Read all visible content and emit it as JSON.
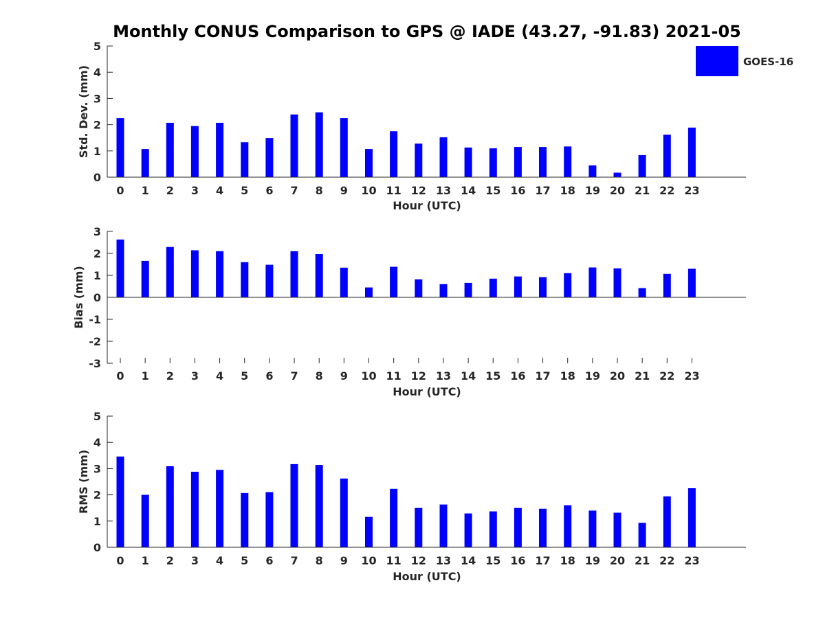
{
  "title": "Monthly CONUS Comparison to GPS @ IADE (43.27, -91.83) 2021-05",
  "legend": {
    "label": "GOES-16",
    "color": "#0000ff",
    "position": "top-right"
  },
  "chart_data": [
    {
      "type": "bar",
      "id": "std",
      "title": "",
      "xlabel": "Hour (UTC)",
      "ylabel": "Std. Dev. (mm)",
      "ylim": [
        0,
        5
      ],
      "yticks": [
        "0",
        "1",
        "2",
        "3",
        "4",
        "5"
      ],
      "categories": [
        "0",
        "1",
        "2",
        "3",
        "4",
        "5",
        "6",
        "7",
        "8",
        "9",
        "10",
        "11",
        "12",
        "13",
        "14",
        "15",
        "16",
        "17",
        "18",
        "19",
        "20",
        "21",
        "22",
        "23"
      ],
      "series": [
        {
          "name": "GOES-16",
          "values": [
            2.25,
            1.07,
            2.07,
            1.95,
            2.07,
            1.33,
            1.49,
            2.39,
            2.47,
            2.25,
            1.07,
            1.75,
            1.28,
            1.52,
            1.13,
            1.1,
            1.15,
            1.15,
            1.17,
            0.45,
            0.17,
            0.84,
            1.62,
            1.89
          ]
        }
      ],
      "grid": false
    },
    {
      "type": "bar",
      "id": "bias",
      "title": "",
      "xlabel": "Hour (UTC)",
      "ylabel": "Bias (mm)",
      "ylim": [
        -3,
        3
      ],
      "yticks": [
        "-3",
        "-2",
        "-1",
        "0",
        "1",
        "2",
        "3"
      ],
      "categories": [
        "0",
        "1",
        "2",
        "3",
        "4",
        "5",
        "6",
        "7",
        "8",
        "9",
        "10",
        "11",
        "12",
        "13",
        "14",
        "15",
        "16",
        "17",
        "18",
        "19",
        "20",
        "21",
        "22",
        "23"
      ],
      "series": [
        {
          "name": "GOES-16",
          "values": [
            2.63,
            1.66,
            2.29,
            2.14,
            2.1,
            1.6,
            1.48,
            2.1,
            1.97,
            1.35,
            0.45,
            1.39,
            0.82,
            0.6,
            0.66,
            0.85,
            0.95,
            0.92,
            1.1,
            1.36,
            1.32,
            0.42,
            1.07,
            1.3
          ]
        }
      ],
      "grid": false
    },
    {
      "type": "bar",
      "id": "rms",
      "title": "",
      "xlabel": "Hour (UTC)",
      "ylabel": "RMS (mm)",
      "ylim": [
        0,
        5
      ],
      "yticks": [
        "0",
        "1",
        "2",
        "3",
        "4",
        "5"
      ],
      "categories": [
        "0",
        "1",
        "2",
        "3",
        "4",
        "5",
        "6",
        "7",
        "8",
        "9",
        "10",
        "11",
        "12",
        "13",
        "14",
        "15",
        "16",
        "17",
        "18",
        "19",
        "20",
        "21",
        "22",
        "23"
      ],
      "series": [
        {
          "name": "GOES-16",
          "values": [
            3.46,
            2.0,
            3.09,
            2.88,
            2.95,
            2.07,
            2.1,
            3.17,
            3.14,
            2.62,
            1.16,
            2.23,
            1.5,
            1.63,
            1.29,
            1.37,
            1.5,
            1.47,
            1.6,
            1.4,
            1.32,
            0.93,
            1.94,
            2.25
          ]
        }
      ],
      "grid": false
    }
  ]
}
